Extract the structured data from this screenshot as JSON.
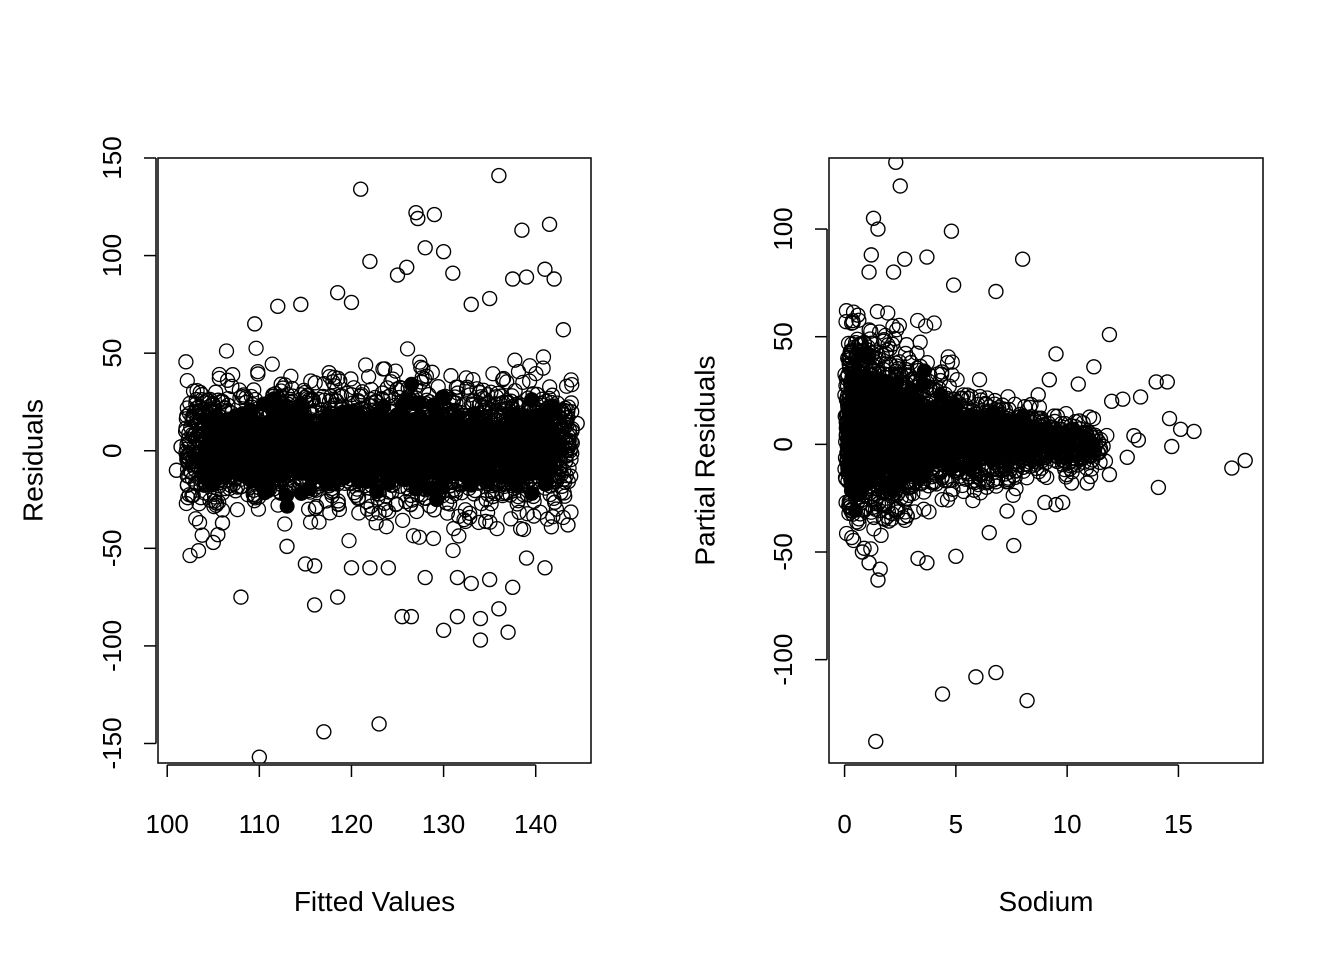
{
  "chart_data": [
    {
      "type": "scatter",
      "title": "",
      "xlabel": "Fitted Values",
      "ylabel": "Residuals",
      "xlim": [
        99,
        146
      ],
      "ylim": [
        -160,
        150
      ],
      "xticks": [
        "100",
        "110",
        "120",
        "130",
        "140"
      ],
      "yticks": [
        "-150",
        "-100",
        "-50",
        "0",
        "50",
        "100",
        "150"
      ],
      "grid": false,
      "legend": "none",
      "marker": "open-circle",
      "density_band": {
        "x_range": [
          102,
          144
        ],
        "y_low": -25,
        "y_high": 30
      },
      "points": [
        [
          101,
          -10
        ],
        [
          101.5,
          2
        ],
        [
          102,
          10
        ],
        [
          108,
          -75
        ],
        [
          110,
          -157
        ],
        [
          116,
          -79
        ],
        [
          117,
          -144
        ],
        [
          118.5,
          -75
        ],
        [
          121,
          134
        ],
        [
          123,
          -140
        ],
        [
          125.5,
          -85
        ],
        [
          126.5,
          -85
        ],
        [
          130,
          -92
        ],
        [
          131.5,
          -85
        ],
        [
          134,
          -97
        ],
        [
          134,
          -86
        ],
        [
          136,
          -81
        ],
        [
          137,
          -93
        ],
        [
          136,
          141
        ],
        [
          138.5,
          113
        ],
        [
          141.5,
          116
        ],
        [
          127,
          122
        ],
        [
          127.2,
          119
        ],
        [
          129,
          121
        ],
        [
          128,
          104
        ],
        [
          130,
          102
        ],
        [
          122,
          97
        ],
        [
          125,
          90
        ],
        [
          126,
          94
        ],
        [
          109.5,
          65
        ],
        [
          112,
          74
        ],
        [
          114.5,
          75
        ],
        [
          118.5,
          81
        ],
        [
          120,
          76
        ],
        [
          141,
          93
        ],
        [
          142,
          88
        ],
        [
          139,
          89
        ],
        [
          137.5,
          88
        ],
        [
          105,
          -47
        ],
        [
          105.5,
          -43
        ],
        [
          106,
          -37
        ],
        [
          113,
          -49
        ],
        [
          115,
          -58
        ],
        [
          116,
          -59
        ],
        [
          120,
          -60
        ],
        [
          122,
          -60
        ],
        [
          124,
          -60
        ],
        [
          128,
          -65
        ],
        [
          131.5,
          -65
        ],
        [
          133,
          -68
        ],
        [
          135,
          -66
        ],
        [
          137.5,
          -70
        ],
        [
          139,
          -55
        ],
        [
          141,
          -60
        ],
        [
          143.5,
          -38
        ],
        [
          144.5,
          14
        ],
        [
          143,
          62
        ],
        [
          133,
          75
        ],
        [
          131,
          91
        ],
        [
          135,
          78
        ]
      ]
    },
    {
      "type": "scatter",
      "title": "",
      "xlabel": "Sodium",
      "ylabel": "Partial Residuals",
      "xlim": [
        -0.7,
        18.8
      ],
      "ylim": [
        -148,
        133
      ],
      "xticks": [
        "0",
        "5",
        "10",
        "15"
      ],
      "yticks": [
        "-100",
        "-50",
        "0",
        "50",
        "100"
      ],
      "grid": false,
      "legend": "none",
      "marker": "open-circle",
      "density_band": {
        "x_range": [
          0,
          11
        ],
        "y_low": -40,
        "y_high": 55
      },
      "points": [
        [
          2.3,
          131
        ],
        [
          2.5,
          120
        ],
        [
          1.3,
          105
        ],
        [
          1.5,
          100
        ],
        [
          4.8,
          99
        ],
        [
          1.2,
          88
        ],
        [
          2.7,
          86
        ],
        [
          3.7,
          87
        ],
        [
          8,
          86
        ],
        [
          1.1,
          80
        ],
        [
          2.2,
          80
        ],
        [
          6.8,
          71
        ],
        [
          4.9,
          74
        ],
        [
          0.6,
          60
        ],
        [
          0.5,
          40
        ],
        [
          0.3,
          18
        ],
        [
          0.8,
          -50
        ],
        [
          1.1,
          -55
        ],
        [
          1.5,
          -63
        ],
        [
          1.6,
          -58
        ],
        [
          3.3,
          -53
        ],
        [
          3.7,
          -55
        ],
        [
          5,
          -52
        ],
        [
          6.5,
          -41
        ],
        [
          7.6,
          -47
        ],
        [
          4.4,
          -116
        ],
        [
          5.9,
          -108
        ],
        [
          6.8,
          -106
        ],
        [
          8.2,
          -119
        ],
        [
          1.4,
          -138
        ],
        [
          11.9,
          51
        ],
        [
          9.5,
          42
        ],
        [
          11.2,
          36
        ],
        [
          12.5,
          21
        ],
        [
          13.3,
          22
        ],
        [
          14,
          29
        ],
        [
          14.5,
          29
        ],
        [
          14.6,
          12
        ],
        [
          15.1,
          7
        ],
        [
          15.7,
          6
        ],
        [
          14.7,
          -1
        ],
        [
          14.1,
          -20
        ],
        [
          17.4,
          -11
        ],
        [
          18,
          -7.5
        ],
        [
          11.9,
          -14
        ],
        [
          12.7,
          -6
        ],
        [
          13.2,
          2
        ],
        [
          9.5,
          -28
        ],
        [
          9,
          -27
        ],
        [
          8.3,
          -34
        ],
        [
          7.3,
          -31
        ],
        [
          9.8,
          -27
        ],
        [
          10.2,
          -18
        ],
        [
          11.5,
          -2
        ],
        [
          12,
          20
        ],
        [
          10.5,
          28
        ],
        [
          9.2,
          30
        ],
        [
          8.7,
          23
        ],
        [
          10.9,
          -18
        ],
        [
          13,
          4
        ]
      ]
    }
  ]
}
